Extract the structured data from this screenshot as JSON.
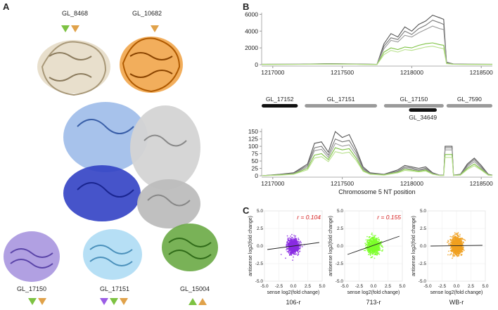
{
  "panels": {
    "a": "A",
    "b": "B",
    "c": "C"
  },
  "structures": {
    "top_left": {
      "label": "GL_8468",
      "color": "#d9cbb0"
    },
    "top_right": {
      "label": "GL_10682",
      "color": "#e88a1c"
    },
    "center": {
      "colors": [
        "#7ea6e0",
        "#2c3cb8",
        "#c9c9c9"
      ]
    },
    "bottom_1": {
      "label": "GL_17150",
      "color": "#9a86d6"
    },
    "bottom_2": {
      "label": "GL_17151",
      "color": "#9ed0ee"
    },
    "bottom_3": {
      "label": "GL_15004",
      "color": "#5a9a3a"
    }
  },
  "triangle_colors": {
    "green": "#7dc242",
    "orange": "#e0a24a",
    "purple": "#9b5de5"
  },
  "chart_data": [
    {
      "type": "line",
      "panel": "B-top",
      "yticks": [
        0,
        2000,
        4000,
        6000
      ],
      "ytick_labels": [
        "0",
        "2000",
        "4000",
        "6000"
      ],
      "xticks": [
        1217000,
        1217500,
        1218000,
        1218500
      ],
      "xtick_labels": [
        "1217000",
        "1217500",
        "1218000",
        "1218500"
      ],
      "ylim": [
        0,
        6200
      ],
      "xlim": [
        1216920,
        1218580
      ],
      "series": [
        {
          "color": "#555555",
          "x": [
            1216920,
            1217200,
            1217400,
            1217600,
            1217750,
            1217800,
            1217850,
            1217900,
            1217950,
            1218000,
            1218050,
            1218100,
            1218150,
            1218200,
            1218230,
            1218250,
            1218300,
            1218400,
            1218580
          ],
          "y": [
            50,
            60,
            120,
            80,
            40,
            2500,
            3700,
            3300,
            4500,
            4000,
            4800,
            5200,
            5900,
            5600,
            5400,
            300,
            80,
            60,
            50
          ]
        },
        {
          "color": "#777777",
          "x": [
            1216920,
            1217200,
            1217400,
            1217600,
            1217750,
            1217800,
            1217850,
            1217900,
            1217950,
            1218000,
            1218050,
            1218100,
            1218150,
            1218200,
            1218230,
            1218250,
            1218300,
            1218400,
            1218580
          ],
          "y": [
            40,
            50,
            100,
            70,
            30,
            2200,
            3200,
            3000,
            4000,
            3600,
            4300,
            4700,
            5300,
            5000,
            4800,
            250,
            70,
            50,
            40
          ]
        },
        {
          "color": "#9a9a9a",
          "x": [
            1216920,
            1217200,
            1217400,
            1217600,
            1217750,
            1217800,
            1217850,
            1217900,
            1217950,
            1218000,
            1218050,
            1218100,
            1218150,
            1218200,
            1218230,
            1218250,
            1218300,
            1218400,
            1218580
          ],
          "y": [
            30,
            40,
            90,
            60,
            30,
            1900,
            2900,
            2700,
            3500,
            3300,
            3800,
            4200,
            4600,
            4300,
            4200,
            200,
            60,
            40,
            30
          ]
        },
        {
          "color": "#7dc242",
          "x": [
            1216920,
            1217200,
            1217400,
            1217600,
            1217750,
            1217800,
            1217850,
            1217900,
            1217950,
            1218000,
            1218050,
            1218100,
            1218150,
            1218200,
            1218230,
            1218250,
            1218300,
            1218400,
            1218580
          ],
          "y": [
            30,
            40,
            80,
            50,
            20,
            1500,
            2000,
            1800,
            2100,
            2000,
            2300,
            2500,
            2600,
            2400,
            2300,
            150,
            50,
            30,
            30
          ]
        },
        {
          "color": "#b7e08a",
          "x": [
            1216920,
            1217200,
            1217400,
            1217600,
            1217750,
            1217800,
            1217850,
            1217900,
            1217950,
            1218000,
            1218050,
            1218100,
            1218150,
            1218200,
            1218230,
            1218250,
            1218300,
            1218400,
            1218580
          ],
          "y": [
            20,
            30,
            60,
            40,
            20,
            1200,
            1700,
            1500,
            1800,
            1700,
            1900,
            2100,
            2200,
            2000,
            1900,
            120,
            40,
            25,
            20
          ]
        }
      ]
    },
    {
      "type": "line",
      "panel": "B-bottom",
      "yticks": [
        0,
        25,
        50,
        75,
        100,
        125,
        150
      ],
      "ytick_labels": [
        "0",
        "25",
        "50",
        "75",
        "100",
        "125",
        "150"
      ],
      "xticks": [
        1217000,
        1217500,
        1218000,
        1218500
      ],
      "xtick_labels": [
        "1217000",
        "1217500",
        "1218000",
        "1218500"
      ],
      "xlabel": "Chromosome 5 NT position",
      "ylim": [
        0,
        160
      ],
      "xlim": [
        1216920,
        1218580
      ],
      "series": [
        {
          "color": "#555555",
          "x": [
            1216920,
            1217050,
            1217150,
            1217250,
            1217300,
            1217350,
            1217400,
            1217450,
            1217500,
            1217550,
            1217600,
            1217650,
            1217700,
            1217800,
            1217900,
            1217950,
            1218000,
            1218050,
            1218100,
            1218150,
            1218200,
            1218230,
            1218240,
            1218290,
            1218300,
            1218350,
            1218400,
            1218450,
            1218500,
            1218550,
            1218580
          ],
          "y": [
            0,
            5,
            10,
            40,
            110,
            115,
            80,
            150,
            130,
            140,
            90,
            30,
            10,
            5,
            20,
            35,
            30,
            25,
            30,
            10,
            2,
            2,
            100,
            100,
            2,
            5,
            40,
            60,
            35,
            5,
            2
          ]
        },
        {
          "color": "#777777",
          "x": [
            1216920,
            1217050,
            1217150,
            1217250,
            1217300,
            1217350,
            1217400,
            1217450,
            1217500,
            1217550,
            1217600,
            1217650,
            1217700,
            1217800,
            1217900,
            1217950,
            1218000,
            1218050,
            1218100,
            1218150,
            1218200,
            1218230,
            1218240,
            1218290,
            1218300,
            1218350,
            1218400,
            1218450,
            1218500,
            1218550,
            1218580
          ],
          "y": [
            0,
            4,
            8,
            35,
            95,
            100,
            70,
            125,
            115,
            120,
            80,
            25,
            8,
            4,
            16,
            30,
            26,
            20,
            25,
            8,
            2,
            2,
            95,
            95,
            2,
            4,
            35,
            55,
            30,
            4,
            2
          ]
        },
        {
          "color": "#9a9a9a",
          "x": [
            1216920,
            1217050,
            1217150,
            1217250,
            1217300,
            1217350,
            1217400,
            1217450,
            1217500,
            1217550,
            1217600,
            1217650,
            1217700,
            1217800,
            1217900,
            1217950,
            1218000,
            1218050,
            1218100,
            1218150,
            1218200,
            1218230,
            1218240,
            1218290,
            1218300,
            1218350,
            1218400,
            1218450,
            1218500,
            1218550,
            1218580
          ],
          "y": [
            0,
            3,
            7,
            30,
            85,
            90,
            62,
            110,
            100,
            105,
            70,
            22,
            7,
            3,
            14,
            26,
            22,
            18,
            22,
            7,
            1,
            1,
            88,
            88,
            1,
            3,
            30,
            48,
            26,
            3,
            1
          ]
        },
        {
          "color": "#7dc242",
          "x": [
            1216920,
            1217050,
            1217150,
            1217250,
            1217300,
            1217350,
            1217400,
            1217450,
            1217500,
            1217550,
            1217600,
            1217650,
            1217700,
            1217800,
            1217900,
            1217950,
            1218000,
            1218050,
            1218100,
            1218150,
            1218200,
            1218230,
            1218240,
            1218290,
            1218300,
            1218350,
            1218400,
            1218450,
            1218500,
            1218550,
            1218580
          ],
          "y": [
            0,
            3,
            6,
            25,
            70,
            75,
            55,
            95,
            88,
            92,
            60,
            18,
            6,
            3,
            12,
            22,
            19,
            15,
            19,
            6,
            1,
            1,
            72,
            72,
            1,
            3,
            25,
            40,
            22,
            3,
            1
          ]
        },
        {
          "color": "#b7e08a",
          "x": [
            1216920,
            1217050,
            1217150,
            1217250,
            1217300,
            1217350,
            1217400,
            1217450,
            1217500,
            1217550,
            1217600,
            1217650,
            1217700,
            1217800,
            1217900,
            1217950,
            1218000,
            1218050,
            1218100,
            1218150,
            1218200,
            1218230,
            1218240,
            1218290,
            1218300,
            1218350,
            1218400,
            1218450,
            1218500,
            1218550,
            1218580
          ],
          "y": [
            0,
            2,
            5,
            20,
            60,
            65,
            48,
            82,
            76,
            80,
            52,
            15,
            5,
            2,
            10,
            18,
            16,
            13,
            16,
            5,
            1,
            1,
            62,
            62,
            1,
            2,
            21,
            34,
            19,
            2,
            1
          ]
        }
      ]
    },
    {
      "type": "scatter",
      "panel": "C-1",
      "xlabel": "sense log2(fold change)",
      "ylabel": "antisense log2(fold change)",
      "title": "106-r",
      "annotation": "r = 0.104",
      "color": "#8a2be2",
      "xlim": [
        -5,
        5
      ],
      "ylim": [
        -5,
        5
      ],
      "xticks": [
        -5,
        -2.5,
        0,
        2.5,
        5
      ],
      "xtick_labels": [
        "-5.0",
        "-2.5",
        "0.0",
        "2.5",
        "5.0"
      ],
      "yticks": [
        -5,
        -2.5,
        0,
        2.5,
        5
      ],
      "ytick_labels": [
        "-5.0",
        "-2.5",
        "0.0",
        "2.5",
        "5.0"
      ],
      "spread": [
        0.9,
        0.9
      ],
      "fit": {
        "x": [
          -4.5,
          4.5
        ],
        "y": [
          -0.5,
          0.5
        ]
      }
    },
    {
      "type": "scatter",
      "panel": "C-2",
      "xlabel": "sense log2(fold change)",
      "ylabel": "antisense log2(fold change)",
      "title": "713-r",
      "annotation": "r = 0.155",
      "color": "#7dff2a",
      "xlim": [
        -5,
        5
      ],
      "ylim": [
        -5,
        5
      ],
      "xticks": [
        -5,
        -2.5,
        0,
        2.5,
        5
      ],
      "xtick_labels": [
        "-5.0",
        "-2.5",
        "0.0",
        "2.5",
        "5.0"
      ],
      "yticks": [
        -5,
        -2.5,
        0,
        2.5,
        5
      ],
      "ytick_labels": [
        "-5.0",
        "-2.5",
        "0.0",
        "2.5",
        "5.0"
      ],
      "spread": [
        1.0,
        1.0
      ],
      "fit": {
        "x": [
          -4.5,
          4.5
        ],
        "y": [
          -1.2,
          1.4
        ]
      }
    },
    {
      "type": "scatter",
      "panel": "C-3",
      "xlabel": "sense log2(fold change)",
      "ylabel": "antisense log2(fold change)",
      "title": "WB-r",
      "color": "#f0a020",
      "xlim": [
        -5,
        5
      ],
      "ylim": [
        -5,
        5
      ],
      "xticks": [
        -5,
        -2.5,
        0,
        2.5,
        5
      ],
      "xtick_labels": [
        "-5.0",
        "-2.5",
        "0.0",
        "2.5",
        "5.0"
      ],
      "yticks": [
        -5,
        -2.5,
        0,
        2.5,
        5
      ],
      "ytick_labels": [
        "-5.0",
        "-2.5",
        "0.0",
        "2.5",
        "5.0"
      ],
      "spread": [
        0.9,
        1.2
      ],
      "fit": {
        "x": [
          -4.5,
          4.5
        ],
        "y": [
          0.0,
          0.1
        ]
      }
    }
  ],
  "gene_track": {
    "genes": [
      {
        "name": "GL_17152",
        "start": 1216920,
        "end": 1217180,
        "color": "#111111"
      },
      {
        "name": "GL_17151",
        "start": 1217230,
        "end": 1217750,
        "color": "#9a9a9a"
      },
      {
        "name": "GL_17150",
        "start": 1217800,
        "end": 1218230,
        "color": "#9a9a9a"
      },
      {
        "name": "GL_7590",
        "start": 1218250,
        "end": 1218580,
        "color": "#9a9a9a"
      },
      {
        "name": "GL_34649",
        "start": 1217980,
        "end": 1218180,
        "color": "#111111"
      }
    ]
  }
}
